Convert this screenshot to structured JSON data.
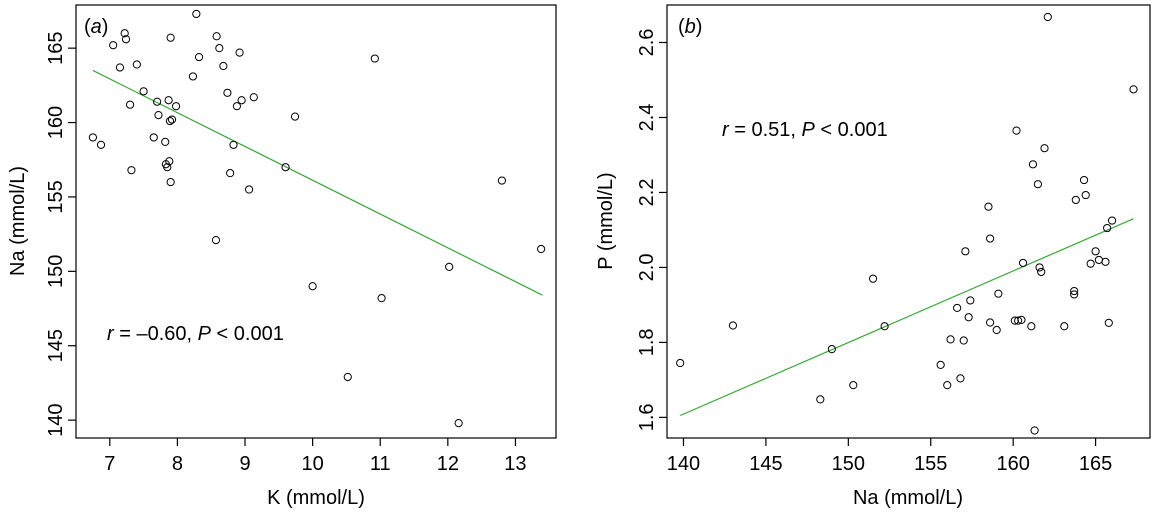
{
  "chart_data": [
    {
      "type": "scatter",
      "panel_label": "a",
      "xlabel": "K (mmol/L)",
      "ylabel": "Na (mmol/L)",
      "xlim": [
        6.5,
        13.6
      ],
      "ylim": [
        138.8,
        167.9
      ],
      "xticks": [
        7,
        8,
        9,
        10,
        11,
        12,
        13
      ],
      "yticks": [
        140,
        145,
        150,
        155,
        160,
        165
      ],
      "annotation": {
        "r_symbol": "r",
        "r_text": " = –0.60, ",
        "p_symbol": "P",
        "p_text": " < 0.001"
      },
      "fit_line": {
        "color": "#33aa33",
        "x": [
          6.75,
          13.4
        ],
        "y": [
          163.5,
          148.4
        ]
      },
      "series": [
        {
          "points": [
            [
              6.75,
              159.0
            ],
            [
              6.87,
              158.5
            ],
            [
              7.05,
              165.2
            ],
            [
              7.15,
              163.7
            ],
            [
              7.22,
              166.0
            ],
            [
              7.24,
              165.6
            ],
            [
              7.3,
              161.2
            ],
            [
              7.32,
              156.8
            ],
            [
              7.4,
              163.9
            ],
            [
              7.5,
              162.1
            ],
            [
              7.65,
              159.0
            ],
            [
              7.7,
              161.4
            ],
            [
              7.72,
              160.5
            ],
            [
              7.82,
              158.7
            ],
            [
              7.83,
              157.2
            ],
            [
              7.85,
              157.0
            ],
            [
              7.87,
              161.5
            ],
            [
              7.88,
              157.4
            ],
            [
              7.89,
              160.1
            ],
            [
              7.9,
              165.7
            ],
            [
              7.9,
              156.0
            ],
            [
              7.92,
              160.2
            ],
            [
              7.98,
              161.1
            ],
            [
              8.23,
              163.1
            ],
            [
              8.28,
              167.3
            ],
            [
              8.32,
              164.4
            ],
            [
              8.57,
              152.1
            ],
            [
              8.58,
              165.8
            ],
            [
              8.62,
              165.0
            ],
            [
              8.68,
              163.8
            ],
            [
              8.74,
              162.0
            ],
            [
              8.78,
              156.6
            ],
            [
              8.83,
              158.5
            ],
            [
              8.88,
              161.1
            ],
            [
              8.92,
              164.7
            ],
            [
              8.95,
              161.5
            ],
            [
              9.06,
              155.5
            ],
            [
              9.13,
              161.7
            ],
            [
              9.6,
              157.0
            ],
            [
              9.74,
              160.4
            ],
            [
              10.0,
              149.0
            ],
            [
              10.52,
              142.9
            ],
            [
              10.92,
              164.3
            ],
            [
              11.02,
              148.2
            ],
            [
              12.02,
              150.3
            ],
            [
              12.16,
              139.8
            ],
            [
              12.8,
              156.1
            ],
            [
              13.38,
              151.5
            ]
          ]
        }
      ]
    },
    {
      "type": "scatter",
      "panel_label": "b",
      "xlabel": "Na (mmol/L)",
      "ylabel": "P (mmol/L)",
      "xlim": [
        139,
        168.3
      ],
      "ylim": [
        1.545,
        2.7
      ],
      "xticks": [
        140,
        145,
        150,
        155,
        160,
        165
      ],
      "yticks": [
        1.6,
        1.8,
        2.0,
        2.2,
        2.4,
        2.6
      ],
      "annotation": {
        "r_symbol": "r",
        "r_text": " = 0.51, ",
        "p_symbol": "P",
        "p_text": " < 0.001"
      },
      "fit_line": {
        "color": "#33aa33",
        "x": [
          139.8,
          167.3
        ],
        "y": [
          1.605,
          2.13
        ]
      },
      "series": [
        {
          "points": [
            [
              139.8,
              1.745
            ],
            [
              143.0,
              1.845
            ],
            [
              148.3,
              1.648
            ],
            [
              149.0,
              1.782
            ],
            [
              150.3,
              1.686
            ],
            [
              151.5,
              1.97
            ],
            [
              152.2,
              1.843
            ],
            [
              155.6,
              1.74
            ],
            [
              156.0,
              1.686
            ],
            [
              156.2,
              1.808
            ],
            [
              156.6,
              1.892
            ],
            [
              156.8,
              1.704
            ],
            [
              157.0,
              1.805
            ],
            [
              157.1,
              2.043
            ],
            [
              157.3,
              1.867
            ],
            [
              157.4,
              1.912
            ],
            [
              158.5,
              2.162
            ],
            [
              158.6,
              2.077
            ],
            [
              158.6,
              1.853
            ],
            [
              159.0,
              1.833
            ],
            [
              159.1,
              1.93
            ],
            [
              160.1,
              1.858
            ],
            [
              160.2,
              2.365
            ],
            [
              160.3,
              1.858
            ],
            [
              160.5,
              1.86
            ],
            [
              160.6,
              2.012
            ],
            [
              161.1,
              1.843
            ],
            [
              161.2,
              2.275
            ],
            [
              161.3,
              1.565
            ],
            [
              161.5,
              2.222
            ],
            [
              161.6,
              2.0
            ],
            [
              161.7,
              1.988
            ],
            [
              161.9,
              2.318
            ],
            [
              162.1,
              2.668
            ],
            [
              163.1,
              1.843
            ],
            [
              163.7,
              1.937
            ],
            [
              163.7,
              1.928
            ],
            [
              163.8,
              2.18
            ],
            [
              164.3,
              2.233
            ],
            [
              164.4,
              2.193
            ],
            [
              164.7,
              2.01
            ],
            [
              165.0,
              2.043
            ],
            [
              165.2,
              2.02
            ],
            [
              165.6,
              2.015
            ],
            [
              165.7,
              2.105
            ],
            [
              165.8,
              1.852
            ],
            [
              166.0,
              2.125
            ],
            [
              167.3,
              2.475
            ]
          ]
        }
      ]
    }
  ]
}
